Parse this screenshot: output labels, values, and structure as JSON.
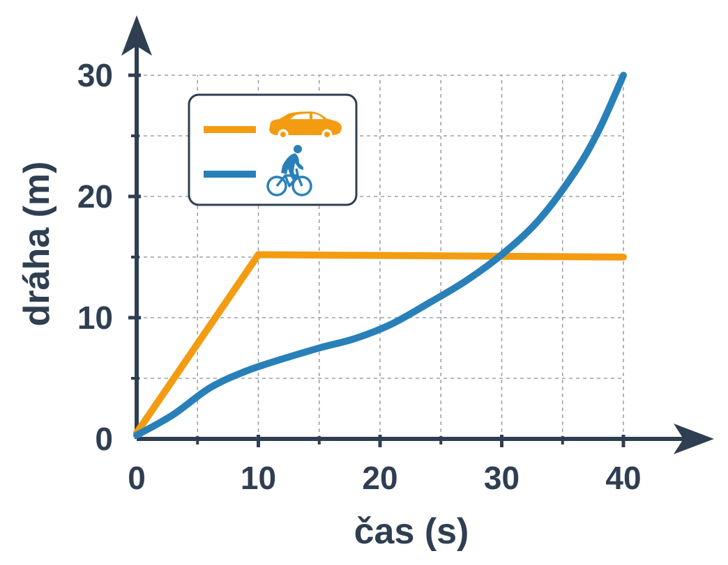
{
  "chart_data": {
    "type": "line",
    "xlabel": "čas (s)",
    "ylabel": "dráha (m)",
    "xlim": [
      0,
      40
    ],
    "ylim": [
      0,
      30
    ],
    "x_ticks": [
      "0",
      "10",
      "20",
      "30",
      "40"
    ],
    "y_ticks": [
      "0",
      "10",
      "20",
      "30"
    ],
    "grid": true,
    "legend_position": "top-left",
    "series": [
      {
        "legend_icon": "car-icon",
        "color": "#f39c12",
        "x": [
          0,
          10,
          40
        ],
        "y": [
          0.5,
          15.2,
          15.0
        ]
      },
      {
        "legend_icon": "cyclist-icon",
        "color": "#2980b9",
        "x": [
          0,
          3,
          6,
          9,
          12,
          15,
          18,
          21,
          24,
          27,
          30,
          33,
          36,
          38,
          40
        ],
        "y": [
          0.3,
          2.0,
          4.2,
          5.6,
          6.6,
          7.5,
          8.3,
          9.5,
          11.2,
          13.0,
          15.2,
          18.0,
          22.0,
          25.5,
          30.0
        ]
      }
    ]
  }
}
